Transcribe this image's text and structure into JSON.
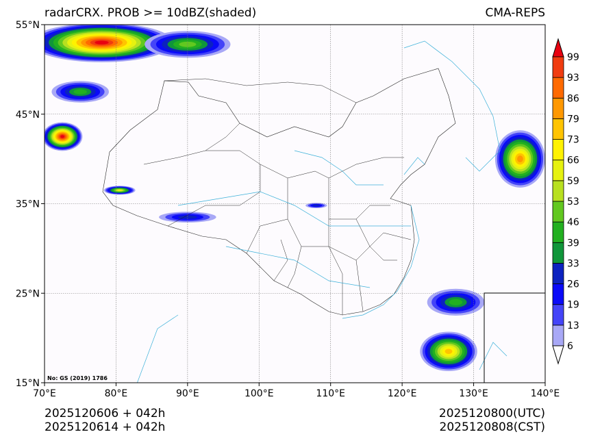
{
  "title_left": "radarCRX. PROB >= 10dBZ(shaded)",
  "title_right": "CMA-REPS",
  "footer_left": [
    "2025120606  +  042h",
    "2025120614  +  042h"
  ],
  "footer_right": [
    "2025120800(UTC)",
    "2025120808(CST)"
  ],
  "map_note": "No: GS (2019) 1786",
  "chart_data": {
    "type": "heatmap",
    "title": "radarCRX. PROB >= 10dBZ(shaded)",
    "xlim": [
      70,
      140
    ],
    "ylim": [
      15,
      55
    ],
    "x_ticks": [
      70,
      80,
      90,
      100,
      110,
      120,
      130,
      140
    ],
    "x_tick_labels": [
      "70°E",
      "80°E",
      "90°E",
      "100°E",
      "110°E",
      "120°E",
      "130°E",
      "140°E"
    ],
    "y_ticks": [
      15,
      25,
      35,
      45,
      55
    ],
    "y_tick_labels": [
      "15°N",
      "25°N",
      "35°N",
      "45°N",
      "55°N"
    ],
    "grid": true,
    "colorbar": {
      "levels": [
        "6",
        "13",
        "19",
        "26",
        "33",
        "39",
        "46",
        "53",
        "59",
        "66",
        "73",
        "79",
        "86",
        "93",
        "99"
      ],
      "colors": [
        "#a8a8f6",
        "#4444f8",
        "#0a0af8",
        "#0c22c0",
        "#10963a",
        "#22b020",
        "#62c820",
        "#b8e020",
        "#e6f210",
        "#fff200",
        "#ffc400",
        "#ff9800",
        "#ff6a00",
        "#f03c10"
      ],
      "under_color": "#ffffff",
      "over_color": "#e80010",
      "placement": "right"
    },
    "features": [
      {
        "lon": 78,
        "lat": 53,
        "rx": 10,
        "ry": 2.2,
        "peak": 99
      },
      {
        "lon": 90,
        "lat": 52.8,
        "rx": 6,
        "ry": 1.5,
        "peak": 46
      },
      {
        "lon": 72.5,
        "lat": 42.5,
        "rx": 2.8,
        "ry": 1.6,
        "peak": 99
      },
      {
        "lon": 75,
        "lat": 47.5,
        "rx": 4,
        "ry": 1.2,
        "peak": 39
      },
      {
        "lon": 136.5,
        "lat": 40,
        "rx": 3.5,
        "ry": 3.2,
        "peak": 79
      },
      {
        "lon": 126.5,
        "lat": 18.5,
        "rx": 4,
        "ry": 2.2,
        "peak": 73
      },
      {
        "lon": 127.5,
        "lat": 24,
        "rx": 4,
        "ry": 1.5,
        "peak": 39
      },
      {
        "lon": 80.5,
        "lat": 36.5,
        "rx": 2.2,
        "ry": 0.5,
        "peak": 59
      },
      {
        "lon": 90,
        "lat": 33.5,
        "rx": 4,
        "ry": 0.6,
        "peak": 26
      },
      {
        "lon": 108,
        "lat": 34.8,
        "rx": 1.5,
        "ry": 0.3,
        "peak": 26
      }
    ]
  }
}
